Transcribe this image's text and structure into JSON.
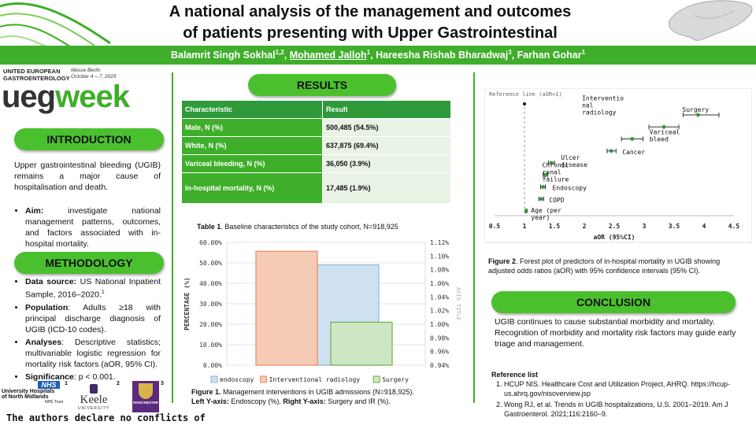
{
  "header": {
    "title_line1": "A national analysis of the management and outcomes",
    "title_line2": "of patients presenting with Upper Gastrointestinal",
    "authors": [
      {
        "name": "Balamrit Singh Sokhal",
        "sup": "1,2",
        "underline": false
      },
      {
        "name": "Mohamed Jalloh",
        "sup": "1",
        "underline": true
      },
      {
        "name": "Hareesha Rishab Bharadwaj",
        "sup": "3",
        "underline": false
      },
      {
        "name": "Farhan Gohar",
        "sup": "1",
        "underline": false
      }
    ]
  },
  "event": {
    "org_line1": "UNITED EUROPEAN",
    "org_line2": "GASTROENTEROLOGY",
    "location": "Messe Berlin",
    "dates": "October 4 – 7, 2025",
    "logo_ueg": "ueg",
    "logo_week": "week"
  },
  "introduction": {
    "heading": "INTRODUCTION",
    "paragraph": "Upper gastrointestinal bleeding (UGIB) remains a major cause of hospitalisation and death.",
    "aim_label": "Aim:",
    "aim_text": " investigate national management patterns, outcomes, and factors associated with in-hospital mortality."
  },
  "methodology": {
    "heading": "METHODOLOGY",
    "items": [
      {
        "label": "Data source:",
        "text": " US National Inpatient Sample, 2016–2020.",
        "sup": "1"
      },
      {
        "label": "Population",
        "text": ": Adults ≥18 with principal discharge diagnosis of UGIB (ICD-10 codes).",
        "sup": ""
      },
      {
        "label": "Analyses",
        "text": ": Descriptive statistics; multivariable logistic regression for mortality risk factors (aOR, 95% CI).",
        "sup": ""
      },
      {
        "label": "Significance",
        "text": ": p < 0.001.",
        "sup": ""
      }
    ]
  },
  "footer_logos": {
    "nhs": "NHS",
    "uhnm_line1": "University Hospitals",
    "uhnm_line2": "of North Midlands",
    "uhnm_line3": "NHS Trust",
    "uhnm_num": "1",
    "keele": "Keele",
    "keele_sub": "UNIVERSITY",
    "keele_num": "2",
    "manchester": "MANCHESTER",
    "manchester_num": "3"
  },
  "conflicts": "The authors declare no conflicts of",
  "results": {
    "heading": "RESULTS",
    "table": {
      "header": [
        "Characteristic",
        "Result"
      ],
      "rows": [
        [
          "Male, N (%)",
          "500,485 (54.5%)"
        ],
        [
          "White, N (%)",
          "637,875 (69.4%)"
        ],
        [
          "Variceal bleeding, N (%)",
          "36,050 (3.9%)"
        ],
        [
          "In-hospital mortality, N (%)",
          "17,485 (1.9%)"
        ]
      ]
    },
    "table_caption_label": "Table 1",
    "table_caption_text": ". Baseline characteristics of the study cohort, N=918,925"
  },
  "figure1": {
    "caption_label": "Figure 1.",
    "caption_text": " Management interventions in UGIB admissions (N=918,925).",
    "caption_left_label": "Left Y-axis:",
    "caption_left_text": " Endoscopy (%). ",
    "caption_right_label": "Right Y-axis:",
    "caption_right_text": " Surgery and IR (%)."
  },
  "figure2": {
    "caption_label": "Figure 2",
    "caption_text": ". Forest plot of predictors of in-hospital mortality in UGIB showing adjusted odds ratios (aOR) with 95% confidence intervals (95% CI)."
  },
  "conclusion": {
    "heading": "CONCLUSION",
    "text": "UGIB continues to cause substantial morbidity and mortality. Recognition of morbidity and mortality risk factors may guide early triage and management."
  },
  "references": {
    "heading": "Reference list",
    "items": [
      "HCUP NIS. Healthcare Cost and Utilization Project, AHRQ. https://hcup-us.ahrq.gov/nisoverview.jsp",
      "Wong RJ, et al. Trends in UGIB hospitalizations, U.S. 2001–2019. Am J Gastroenterol. 2021;116:2160–9."
    ]
  },
  "chart_data": [
    {
      "type": "bar",
      "categories": [
        "endoscopy",
        "Interventional radiology",
        "Surgery"
      ],
      "values": [
        49.0,
        1.107,
        1.003
      ],
      "colors": [
        "#cfe0f1",
        "#f6cbb6",
        "#cfe6c4"
      ],
      "edge_colors": [
        "#8fb3d9",
        "#e98a5f",
        "#6ab04c"
      ],
      "axis_of_series": [
        "left",
        "right",
        "right"
      ],
      "ylabel": "PERCENTAGE (%)",
      "y2label": "AXIS TITLE",
      "ylim": [
        0,
        60
      ],
      "y2lim": [
        0.94,
        1.12
      ],
      "yticks": [
        "0.00%",
        "10.00%",
        "20.00%",
        "30.00%",
        "40.00%",
        "50.00%",
        "60.00%"
      ],
      "y2ticks": [
        "0.94%",
        "0.96%",
        "0.98%",
        "1.00%",
        "1.02%",
        "1.04%",
        "1.06%",
        "1.08%",
        "1.10%",
        "1.12%"
      ],
      "legend": [
        "endoscopy",
        "Interventional radiology",
        "Surgery"
      ],
      "legend_position": "bottom"
    },
    {
      "type": "scatter",
      "subtype": "forest",
      "reference_label": "Reference line (aOR=1)",
      "reference_value": 1,
      "xlabel": "aOR (95%CI)",
      "xlim": [
        0.5,
        4.5
      ],
      "xticks": [
        "0.5",
        "1",
        "1.5",
        "2",
        "2.5",
        "3",
        "3.5",
        "4",
        "4.5"
      ],
      "color": "#2e9a3a",
      "points": [
        {
          "label": "Surgery",
          "aor": 3.9,
          "lo": 3.65,
          "hi": 4.25
        },
        {
          "label": "Interventional radiology",
          "aor": 3.33,
          "lo": 3.08,
          "hi": 3.58
        },
        {
          "label": "Variceal bleed",
          "aor": 2.8,
          "lo": 2.62,
          "hi": 2.98
        },
        {
          "label": "Cancer",
          "aor": 2.45,
          "lo": 2.38,
          "hi": 2.53
        },
        {
          "label": "Ulcer disease",
          "aor": 1.45,
          "lo": 1.4,
          "hi": 1.5
        },
        {
          "label": "Chronic renal failure",
          "aor": 1.35,
          "lo": 1.31,
          "hi": 1.39
        },
        {
          "label": "Endoscopy",
          "aor": 1.31,
          "lo": 1.27,
          "hi": 1.35
        },
        {
          "label": "COPD",
          "aor": 1.28,
          "lo": 1.24,
          "hi": 1.32
        },
        {
          "label": "Age (per year)",
          "aor": 1.03,
          "lo": 1.02,
          "hi": 1.04
        }
      ]
    }
  ]
}
